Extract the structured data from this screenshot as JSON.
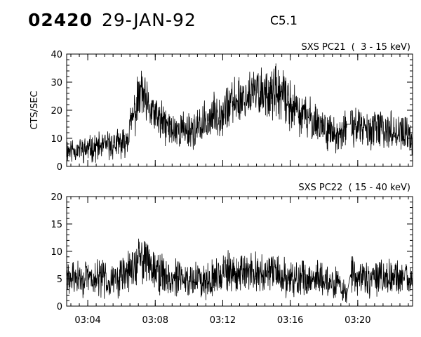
{
  "header": {
    "event_id": "02420",
    "date": "29-JAN-92",
    "goes_class": "C5.1"
  },
  "chart_data": [
    {
      "type": "line",
      "title": "SXS PC21  (  3 - 15 keV)",
      "xlabel": "",
      "ylabel": "CTS/SEC",
      "xlim": [
        "03:02:45",
        "03:23:15"
      ],
      "ylim": [
        0,
        40
      ],
      "x_ticks": [
        "03:04",
        "03:08",
        "03:12",
        "03:16",
        "03:20"
      ],
      "y_ticks": [
        0,
        10,
        20,
        30,
        40
      ],
      "x_tick_labels_shown": false,
      "grid": false,
      "legend": "none",
      "series": [
        {
          "x": [
            "03:02:45",
            "03:03:45",
            "03:04:45",
            "03:05:45",
            "03:06:10",
            "03:06:30",
            "03:06:50",
            "03:07:10",
            "03:07:30",
            "03:08:00",
            "03:08:30",
            "03:09:00",
            "03:09:30",
            "03:10:00",
            "03:10:30",
            "03:11:00",
            "03:11:30",
            "03:12:00",
            "03:12:30",
            "03:13:00",
            "03:13:30",
            "03:14:00",
            "03:14:30",
            "03:15:00",
            "03:15:30",
            "03:16:00",
            "03:16:30",
            "03:17:00",
            "03:17:30",
            "03:18:00",
            "03:18:30",
            "03:18:50",
            "03:19:30",
            "03:19:35",
            "03:20:00",
            "03:20:30",
            "03:21:00",
            "03:21:30",
            "03:22:00",
            "03:22:30",
            "03:23:15"
          ],
          "values": [
            6,
            6,
            7,
            8,
            8,
            14,
            20,
            27,
            21,
            18,
            15,
            13,
            13,
            13,
            13,
            16,
            18,
            20,
            22,
            24,
            25,
            26,
            27,
            26,
            25,
            22,
            19,
            17,
            16,
            14,
            12,
            9,
            17,
            15,
            14,
            13,
            13,
            13,
            13,
            12,
            10
          ],
          "gap_after": "03:19:00"
        }
      ]
    },
    {
      "type": "line",
      "title": "SXS PC22  ( 15 - 40 keV)",
      "xlabel": "",
      "ylabel": "",
      "xlim": [
        "03:02:45",
        "03:23:15"
      ],
      "ylim": [
        0,
        20
      ],
      "x_ticks": [
        "03:04",
        "03:08",
        "03:12",
        "03:16",
        "03:20"
      ],
      "y_ticks": [
        0,
        5,
        10,
        15,
        20
      ],
      "grid": false,
      "legend": "none",
      "series": [
        {
          "x": [
            "03:02:45",
            "03:03:45",
            "03:04:45",
            "03:05:45",
            "03:06:15",
            "03:06:45",
            "03:07:15",
            "03:07:45",
            "03:08:15",
            "03:09:00",
            "03:10:00",
            "03:11:00",
            "03:12:00",
            "03:13:00",
            "03:14:00",
            "03:15:00",
            "03:16:00",
            "03:17:00",
            "03:18:00",
            "03:18:50",
            "03:19:30",
            "03:19:35",
            "03:20:00",
            "03:21:00",
            "03:22:00",
            "03:23:15"
          ],
          "values": [
            5,
            5,
            5,
            5,
            6,
            7,
            9,
            8,
            6,
            5,
            5,
            5,
            6,
            6,
            6,
            6,
            5,
            5,
            5,
            4,
            1,
            6,
            5,
            5,
            5,
            5
          ],
          "gap_after": "03:19:00"
        }
      ]
    }
  ]
}
